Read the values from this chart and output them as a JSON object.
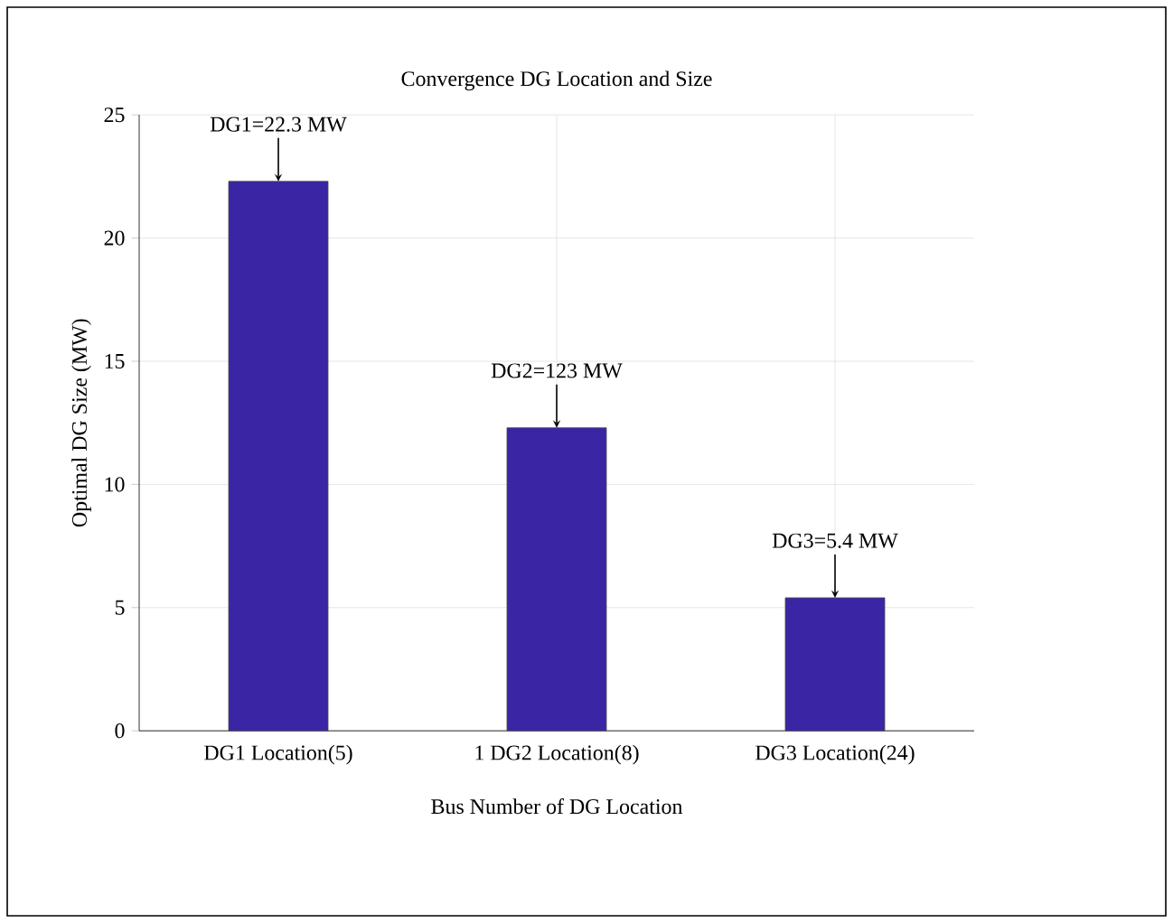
{
  "chart_data": {
    "type": "bar",
    "title": "Convergence DG Location and Size",
    "xlabel": "Bus Number of DG Location",
    "ylabel": "Optimal DG Size (MW)",
    "categories": [
      "DG1 Location(5)",
      "1 DG2 Location(8)",
      "DG3 Location(24)"
    ],
    "values": [
      22.3,
      12.3,
      5.4
    ],
    "color": "#3a25a5",
    "ylim": [
      0,
      25
    ],
    "yticks": [
      0,
      5,
      10,
      15,
      20,
      25
    ],
    "grid": true,
    "annotations": [
      {
        "text": "DG1=22.3 MW",
        "x": "DG1 Location(5)",
        "y": 22.3
      },
      {
        "text": "DG2=123 MW",
        "x": "1 DG2 Location(8)",
        "y": 12.3
      },
      {
        "text": "DG3=5.4 MW",
        "x": "DG3 Location(24)",
        "y": 5.4
      }
    ]
  }
}
